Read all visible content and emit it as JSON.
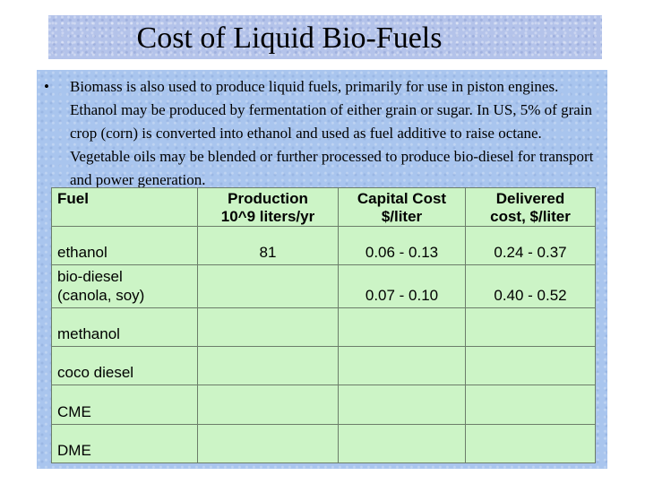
{
  "slide": {
    "title": "Cost of Liquid Bio-Fuels",
    "bullet_symbol": "•",
    "bullet_text": "Biomass is also used to produce liquid fuels, primarily for use in piston engines. Ethanol may be produced by fermentation of either grain or sugar. In US, 5% of grain crop (corn) is converted into ethanol and used as fuel additive to raise octane. Vegetable oils may be blended or further processed to produce bio-diesel for transport and power generation."
  },
  "table": {
    "headers": [
      {
        "line1": "Fuel",
        "line2": ""
      },
      {
        "line1": "Production",
        "line2": "10^9 liters/yr"
      },
      {
        "line1": "Capital Cost",
        "line2": "$/liter"
      },
      {
        "line1": "Delivered",
        "line2": "cost, $/liter"
      }
    ],
    "rows": [
      {
        "fuel": "ethanol",
        "fuel_line2": "",
        "production": "81",
        "capital_cost": "0.06 - 0.13",
        "delivered_cost": "0.24 - 0.37"
      },
      {
        "fuel": "bio-diesel",
        "fuel_line2": "(canola, soy)",
        "production": "",
        "capital_cost": "0.07 - 0.10",
        "delivered_cost": "0.40 - 0.52"
      },
      {
        "fuel": "methanol",
        "fuel_line2": "",
        "production": "",
        "capital_cost": "",
        "delivered_cost": ""
      },
      {
        "fuel": "coco diesel",
        "fuel_line2": "",
        "production": "",
        "capital_cost": "",
        "delivered_cost": ""
      },
      {
        "fuel": "CME",
        "fuel_line2": "",
        "production": "",
        "capital_cost": "",
        "delivered_cost": ""
      },
      {
        "fuel": "DME",
        "fuel_line2": "",
        "production": "",
        "capital_cost": "",
        "delivered_cost": ""
      }
    ]
  },
  "colors": {
    "title_bg": "#b4c3ea",
    "panel_bg": "#a9c5ee",
    "table_bg": "#ccf4c6"
  }
}
